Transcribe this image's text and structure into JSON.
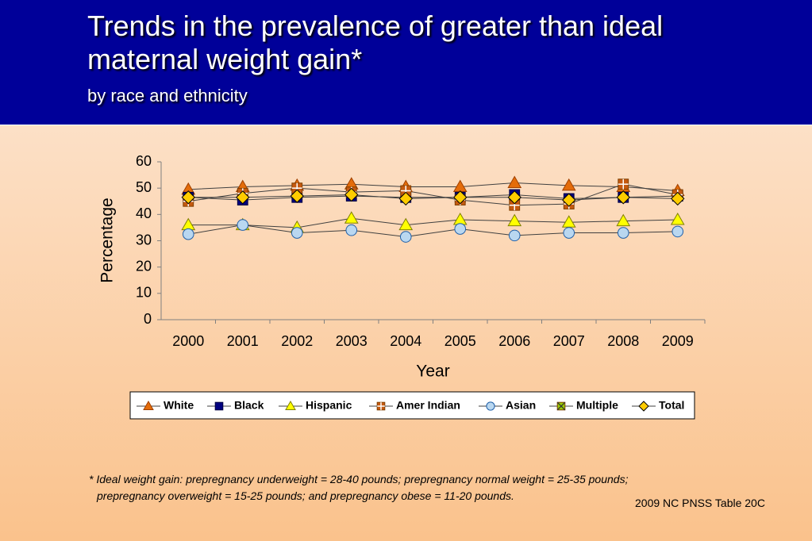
{
  "title": "Trends in the prevalence of greater than ideal maternal weight gain*",
  "subtitle": "by race and ethnicity",
  "footnote": [
    "*  Ideal weight gain: prepregnancy underweight = 28-40 pounds; prepregnancy normal weight = 25-35 pounds;",
    "prepregnancy overweight = 15-25 pounds; and prepregnancy obese = 11-20 pounds."
  ],
  "source": "2009 NC PNSS Table 20C",
  "chart_data": {
    "type": "line",
    "x_label": "Year",
    "y_label": "Percentage",
    "categories": [
      "2000",
      "2001",
      "2002",
      "2003",
      "2004",
      "2005",
      "2006",
      "2007",
      "2008",
      "2009"
    ],
    "ylim": [
      0,
      60
    ],
    "yticks": [
      0,
      10,
      20,
      30,
      40,
      50,
      60
    ],
    "series": [
      {
        "name": "White",
        "color": "#e46c0a",
        "marker": "triangle",
        "values": [
          49.5,
          50.5,
          51,
          51.5,
          50.5,
          50.5,
          52,
          51,
          50.5,
          49
        ]
      },
      {
        "name": "Black",
        "color": "#000080",
        "marker": "square",
        "values": [
          46.5,
          45.5,
          46.5,
          47,
          46.5,
          46.5,
          47.5,
          46,
          46.5,
          47
        ]
      },
      {
        "name": "Hispanic",
        "color": "#ffff00",
        "marker": "triangle",
        "values": [
          36,
          36,
          35,
          38.5,
          36,
          38,
          37.5,
          37,
          37.5,
          38
        ]
      },
      {
        "name": "Amer Indian",
        "color": "#c55a11",
        "marker": "plus-square",
        "values": [
          45,
          48,
          50,
          48.5,
          49,
          45.5,
          43.5,
          44,
          51.5,
          47.5
        ]
      },
      {
        "name": "Asian",
        "color": "#b9d7f0",
        "marker": "circle",
        "values": [
          32.5,
          36,
          33,
          34,
          31.5,
          34.5,
          32,
          33,
          33,
          33.5
        ]
      },
      {
        "name": "Multiple",
        "color": "#99cc00",
        "marker": "x-square",
        "values": [
          null,
          null,
          null,
          null,
          null,
          null,
          null,
          null,
          null,
          null
        ]
      },
      {
        "name": "Total",
        "color": "#ffcc00",
        "marker": "diamond",
        "values": [
          46.5,
          46.5,
          47,
          47.5,
          46,
          46.5,
          46.5,
          45.5,
          46.5,
          46
        ]
      }
    ]
  }
}
